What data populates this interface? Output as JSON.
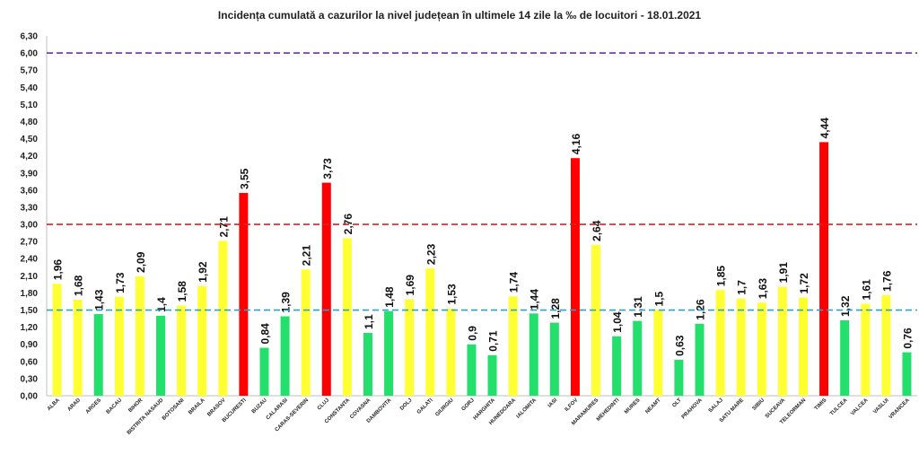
{
  "chart_data": {
    "type": "bar",
    "title": "Incidența cumulată a cazurilor la nivel județean în ultimele 14 zile la ‰ de locuitori - 18.01.2021",
    "xlabel": "",
    "ylabel": "",
    "ylim": [
      0,
      6.3
    ],
    "yticks": [
      "0,00",
      "0,30",
      "0,60",
      "0,90",
      "1,20",
      "1,50",
      "1,80",
      "2,10",
      "2,40",
      "2,70",
      "3,00",
      "3,30",
      "3,60",
      "3,90",
      "4,20",
      "4,50",
      "4,80",
      "5,10",
      "5,40",
      "5,70",
      "6,00",
      "6,30"
    ],
    "grid": false,
    "legend": "none",
    "categories": [
      "ALBA",
      "ARAD",
      "ARGES",
      "BACAU",
      "BIHOR",
      "BISTRITA NASAUD",
      "BOTOSANI",
      "BRAILA",
      "BRASOV",
      "BUCURESTI",
      "BUZAU",
      "CALARASI",
      "CARAS-SEVERIN",
      "CLUJ",
      "CONSTANTA",
      "COVASNA",
      "DAMBOVITA",
      "DOLJ",
      "GALATI",
      "GIURGIU",
      "GORJ",
      "HARGHITA",
      "HUNEDOARA",
      "IALOMITA",
      "IASI",
      "ILFOV",
      "MARAMURES",
      "MEHEDINTI",
      "MURES",
      "NEAMT",
      "OLT",
      "PRAHOVA",
      "SALAJ",
      "SATU MARE",
      "SIBIU",
      "SUCEAVA",
      "TELEORMAN",
      "TIMIS",
      "TULCEA",
      "VALCEA",
      "VASLUI",
      "VRANCEA"
    ],
    "values": [
      1.96,
      1.68,
      1.43,
      1.73,
      2.09,
      1.4,
      1.58,
      1.92,
      2.71,
      3.55,
      0.84,
      1.39,
      2.21,
      3.73,
      2.76,
      1.1,
      1.48,
      1.69,
      2.23,
      1.53,
      0.9,
      0.71,
      1.74,
      1.44,
      1.28,
      4.16,
      2.64,
      1.04,
      1.31,
      1.5,
      0.63,
      1.26,
      1.85,
      1.7,
      1.63,
      1.91,
      1.72,
      4.44,
      1.32,
      1.61,
      1.76,
      0.76
    ],
    "value_labels": [
      "1,96",
      "1,68",
      "1,43",
      "1,73",
      "2,09",
      "1,4",
      "1,58",
      "1,92",
      "2,71",
      "3,55",
      "0,84",
      "1,39",
      "2,21",
      "3,73",
      "2,76",
      "1,1",
      "1,48",
      "1,69",
      "2,23",
      "1,53",
      "0,9",
      "0,71",
      "1,74",
      "1,44",
      "1,28",
      "4,16",
      "2,64",
      "1,04",
      "1,31",
      "1,5",
      "0,63",
      "1,26",
      "1,85",
      "1,7",
      "1,63",
      "1,91",
      "1,72",
      "4,44",
      "1,32",
      "1,61",
      "1,76",
      "0,76"
    ],
    "colors": {
      "green": "#22e06b",
      "yellow": "#ffff33",
      "red": "#ff0000"
    },
    "bar_colors": [
      "yellow",
      "yellow",
      "green",
      "yellow",
      "yellow",
      "green",
      "yellow",
      "yellow",
      "yellow",
      "red",
      "green",
      "green",
      "yellow",
      "red",
      "yellow",
      "green",
      "green",
      "yellow",
      "yellow",
      "yellow",
      "green",
      "green",
      "yellow",
      "green",
      "green",
      "red",
      "yellow",
      "green",
      "green",
      "yellow",
      "green",
      "green",
      "yellow",
      "yellow",
      "yellow",
      "yellow",
      "yellow",
      "red",
      "green",
      "yellow",
      "yellow",
      "green"
    ],
    "reference_lines": [
      {
        "value": 6.0,
        "color": "#7030a0",
        "style": "dashed"
      },
      {
        "value": 3.0,
        "color": "#e02020",
        "style": "dashed"
      },
      {
        "value": 1.5,
        "color": "#1fa6d8",
        "style": "dashed"
      }
    ]
  }
}
